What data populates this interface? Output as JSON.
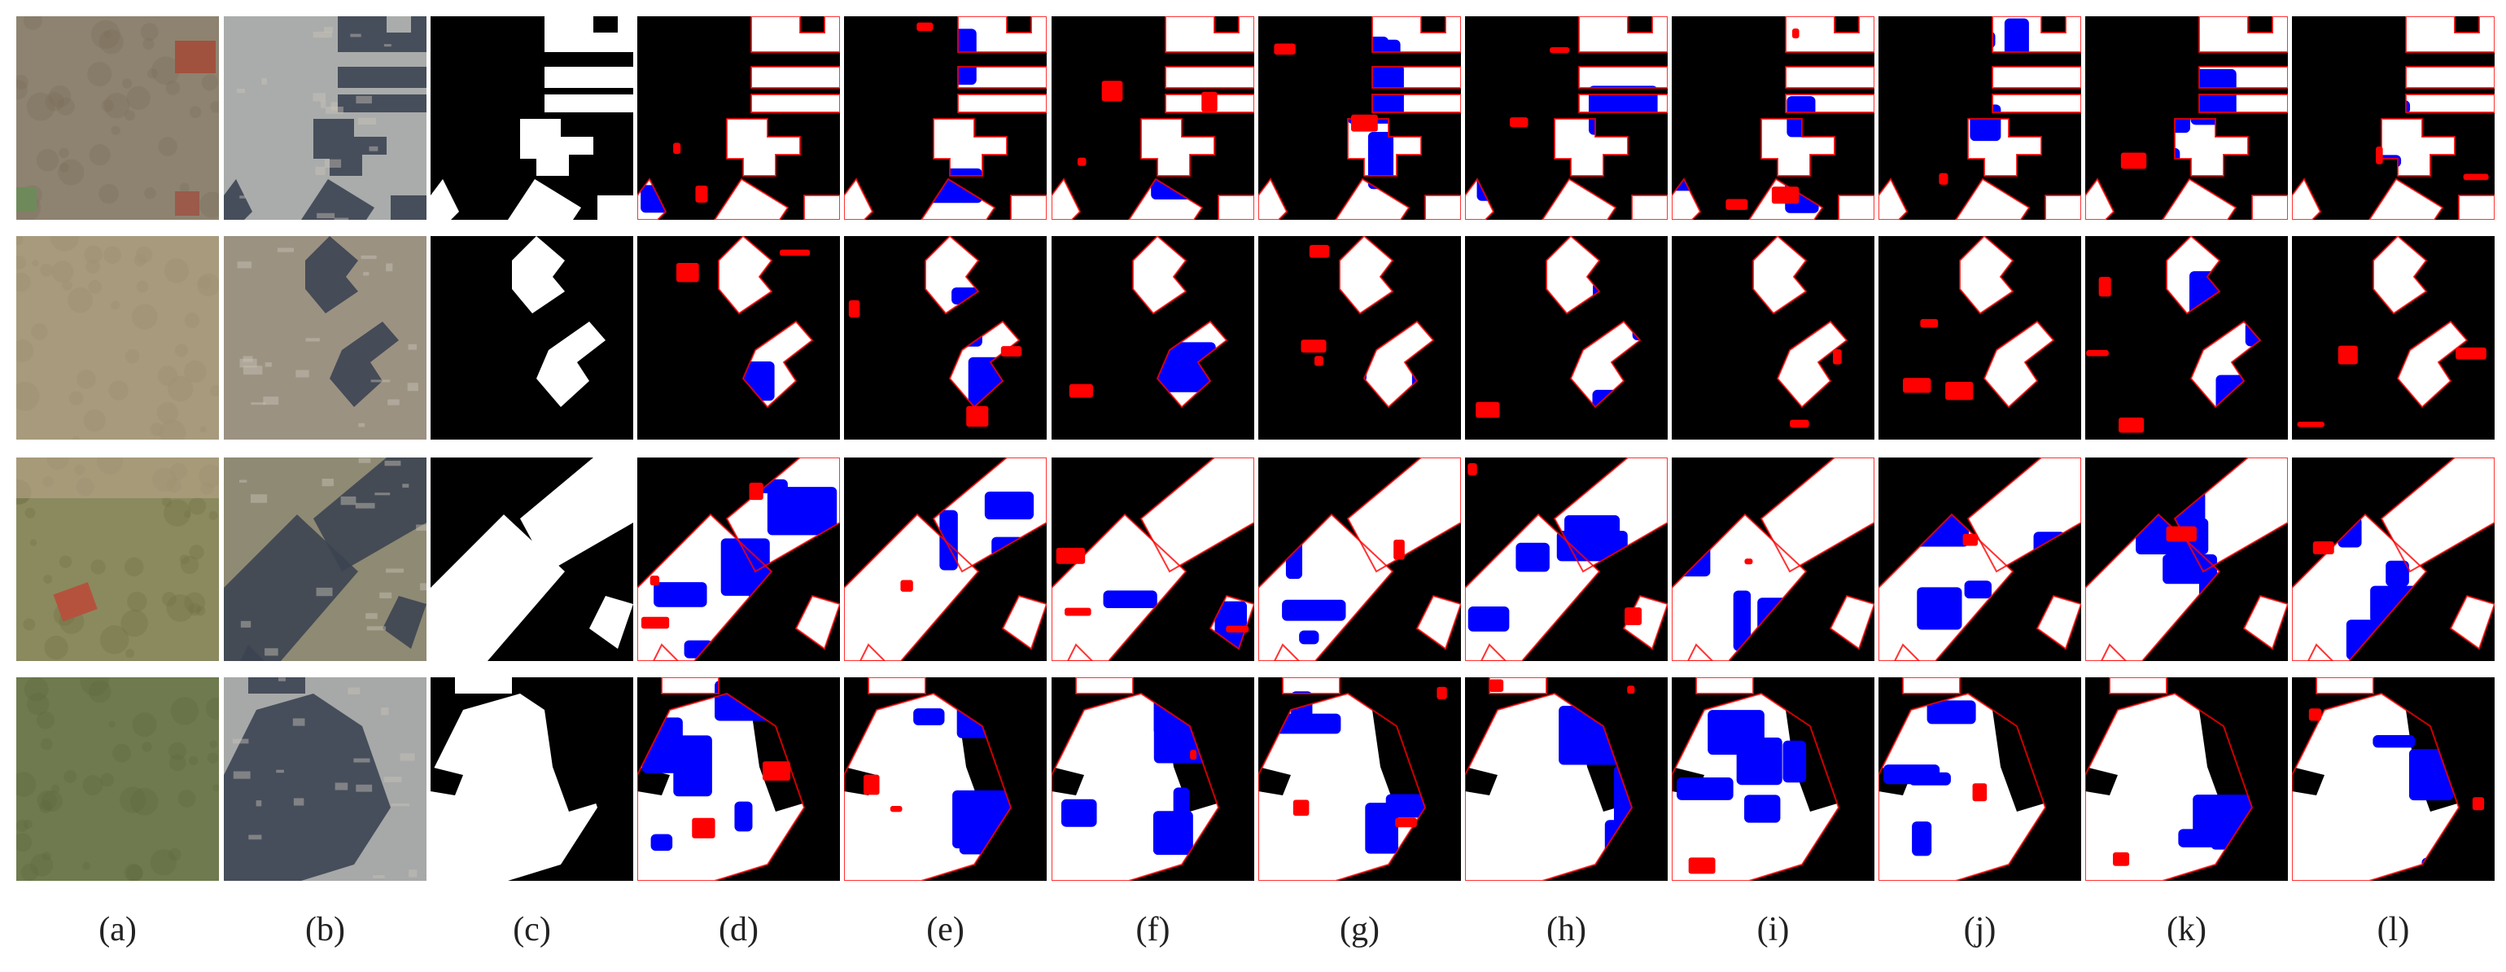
{
  "colors": {
    "background": "#000000",
    "building": "#ffffff",
    "false_positive": "#ff0000",
    "false_negative": "#0000ff",
    "ground": "#b4aa92",
    "roof": "#3c4452"
  },
  "columns": [
    {
      "label": "(a)",
      "kind": "image_t1"
    },
    {
      "label": "(b)",
      "kind": "image_t2"
    },
    {
      "label": "(c)",
      "kind": "ground_truth"
    },
    {
      "label": "(d)",
      "kind": "prediction"
    },
    {
      "label": "(e)",
      "kind": "prediction"
    },
    {
      "label": "(f)",
      "kind": "prediction"
    },
    {
      "label": "(g)",
      "kind": "prediction"
    },
    {
      "label": "(h)",
      "kind": "prediction"
    },
    {
      "label": "(i)",
      "kind": "prediction"
    },
    {
      "label": "(j)",
      "kind": "prediction"
    },
    {
      "label": "(k)",
      "kind": "prediction"
    },
    {
      "label": "(l)",
      "kind": "prediction"
    }
  ],
  "rows": [
    {
      "scene": "row-1"
    },
    {
      "scene": "row-2"
    },
    {
      "scene": "row-3"
    },
    {
      "scene": "row-4"
    }
  ]
}
